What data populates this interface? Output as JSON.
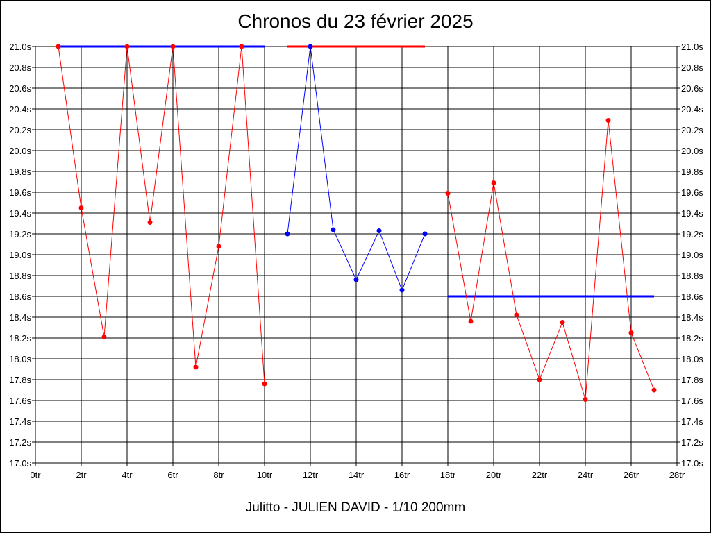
{
  "chart_data": {
    "type": "line",
    "title": "Chronos du 23 février 2025",
    "subtitle": "Julitto - JULIEN DAVID - 1/10 200mm",
    "xlabel": "",
    "ylabel": "",
    "xlim": [
      0,
      28
    ],
    "ylim": [
      17.0,
      21.0
    ],
    "x_ticks": [
      0,
      2,
      4,
      6,
      8,
      10,
      12,
      14,
      16,
      18,
      20,
      22,
      24,
      26,
      28
    ],
    "x_tick_labels": [
      "0tr",
      "2tr",
      "4tr",
      "6tr",
      "8tr",
      "10tr",
      "12tr",
      "14tr",
      "16tr",
      "18tr",
      "20tr",
      "22tr",
      "24tr",
      "26tr",
      "28tr"
    ],
    "y_ticks": [
      17.0,
      17.2,
      17.4,
      17.6,
      17.8,
      18.0,
      18.2,
      18.4,
      18.6,
      18.8,
      19.0,
      19.2,
      19.4,
      19.6,
      19.8,
      20.0,
      20.2,
      20.4,
      20.6,
      20.8,
      21.0
    ],
    "y_tick_labels": [
      "17.0s",
      "17.2s",
      "17.4s",
      "17.6s",
      "17.8s",
      "18.0s",
      "18.2s",
      "18.4s",
      "18.6s",
      "18.8s",
      "19.0s",
      "19.2s",
      "19.4s",
      "19.6s",
      "19.8s",
      "20.0s",
      "20.2s",
      "20.4s",
      "20.6s",
      "20.8s",
      "21.0s"
    ],
    "y_axis_both_sides": true,
    "grid": true,
    "legend": "none",
    "series": [
      {
        "color": "#ff0000",
        "x": [
          1,
          2,
          3,
          4,
          5,
          6,
          7,
          8,
          9,
          10
        ],
        "values": [
          21.0,
          19.45,
          18.21,
          21.0,
          19.31,
          21.0,
          17.92,
          19.08,
          21.0,
          17.76
        ]
      },
      {
        "color": "#0000ff",
        "x": [
          11,
          12,
          13,
          14,
          15,
          16,
          17
        ],
        "values": [
          19.2,
          21.0,
          19.24,
          18.76,
          19.23,
          18.66,
          19.2
        ]
      },
      {
        "color": "#ff0000",
        "x": [
          18,
          19,
          20,
          21,
          22,
          23,
          24,
          25,
          26,
          27
        ],
        "values": [
          19.59,
          18.36,
          19.69,
          18.42,
          17.8,
          18.35,
          17.61,
          20.29,
          18.25,
          17.7
        ]
      }
    ],
    "reference_lines": [
      {
        "color": "#0000ff",
        "x": [
          1,
          10
        ],
        "value": 21.0
      },
      {
        "color": "#ff0000",
        "x": [
          11,
          17
        ],
        "value": 21.0
      },
      {
        "color": "#0000ff",
        "x": [
          18,
          27
        ],
        "value": 18.6
      }
    ]
  }
}
